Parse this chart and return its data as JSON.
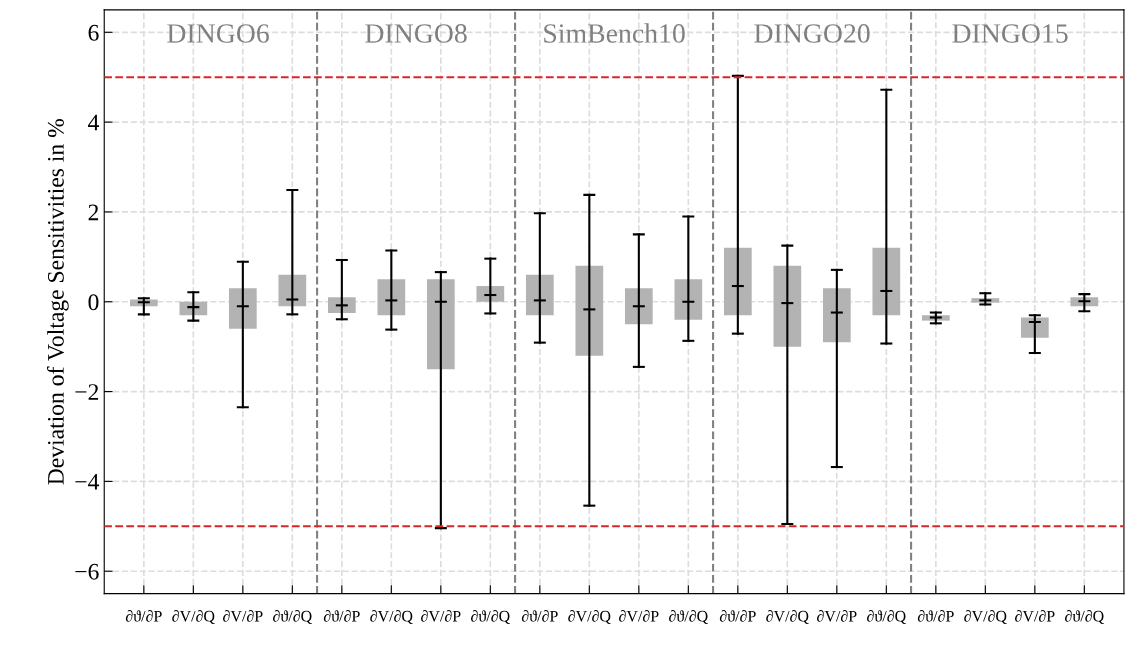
{
  "chart_data": {
    "type": "box",
    "ylabel": "Deviation of Voltage Sensitivities in %",
    "categories": [
      "∂ϑ/∂P",
      "∂V/∂Q",
      "∂V/∂P",
      "∂ϑ/∂Q",
      "∂ϑ/∂P",
      "∂V/∂Q",
      "∂V/∂P",
      "∂ϑ/∂Q",
      "∂ϑ/∂P",
      "∂V/∂Q",
      "∂V/∂P",
      "∂ϑ/∂Q",
      "∂ϑ/∂P",
      "∂V/∂Q",
      "∂V/∂P",
      "∂ϑ/∂Q",
      "∂ϑ/∂P",
      "∂V/∂Q",
      "∂V/∂P",
      "∂ϑ/∂Q"
    ],
    "boxes": [
      {
        "low": -0.28,
        "q1": -0.1,
        "median": -0.01,
        "q3": 0.05,
        "high": 0.08
      },
      {
        "low": -0.42,
        "q1": -0.3,
        "median": -0.12,
        "q3": 0.0,
        "high": 0.21
      },
      {
        "low": -2.35,
        "q1": -0.6,
        "median": -0.1,
        "q3": 0.3,
        "high": 0.89
      },
      {
        "low": -0.28,
        "q1": -0.1,
        "median": 0.05,
        "q3": 0.6,
        "high": 2.49
      },
      {
        "low": -0.39,
        "q1": -0.25,
        "median": -0.08,
        "q3": 0.1,
        "high": 0.93
      },
      {
        "low": -0.62,
        "q1": -0.3,
        "median": 0.03,
        "q3": 0.5,
        "high": 1.14
      },
      {
        "low": -5.04,
        "q1": -1.5,
        "median": 0.0,
        "q3": 0.5,
        "high": 0.66
      },
      {
        "low": -0.26,
        "q1": 0.0,
        "median": 0.15,
        "q3": 0.35,
        "high": 0.96
      },
      {
        "low": -0.91,
        "q1": -0.3,
        "median": 0.03,
        "q3": 0.6,
        "high": 1.97
      },
      {
        "low": -4.54,
        "q1": -1.2,
        "median": -0.17,
        "q3": 0.8,
        "high": 2.38
      },
      {
        "low": -1.45,
        "q1": -0.5,
        "median": -0.1,
        "q3": 0.3,
        "high": 1.5
      },
      {
        "low": -0.87,
        "q1": -0.4,
        "median": 0.0,
        "q3": 0.5,
        "high": 1.9
      },
      {
        "low": -0.71,
        "q1": -0.3,
        "median": 0.35,
        "q3": 1.2,
        "high": 5.03
      },
      {
        "low": -4.95,
        "q1": -1.0,
        "median": -0.03,
        "q3": 0.8,
        "high": 1.25
      },
      {
        "low": -3.68,
        "q1": -0.9,
        "median": -0.24,
        "q3": 0.3,
        "high": 0.71
      },
      {
        "low": -0.93,
        "q1": -0.3,
        "median": 0.24,
        "q3": 1.2,
        "high": 4.72
      },
      {
        "low": -0.48,
        "q1": -0.42,
        "median": -0.35,
        "q3": -0.3,
        "high": -0.24
      },
      {
        "low": -0.06,
        "q1": -0.02,
        "median": 0.03,
        "q3": 0.08,
        "high": 0.19
      },
      {
        "low": -1.14,
        "q1": -0.8,
        "median": -0.45,
        "q3": -0.35,
        "high": -0.3
      },
      {
        "low": -0.21,
        "q1": -0.1,
        "median": 0.01,
        "q3": 0.1,
        "high": 0.17
      }
    ],
    "color": "#b3b3b3",
    "ylim": [
      -6.5,
      6.5
    ],
    "yticks": [
      -6,
      -4,
      -2,
      0,
      2,
      4,
      6
    ],
    "ref_lines": [
      {
        "axis": "y",
        "value": 5,
        "color": "#d62728",
        "line_style": "dashed"
      },
      {
        "axis": "y",
        "value": -5,
        "color": "#d62728",
        "line_style": "dashed"
      }
    ],
    "annotations": [
      "DINGO6",
      "DINGO8",
      "SimBench10",
      "DINGO20",
      "DINGO15"
    ],
    "grid": true
  }
}
